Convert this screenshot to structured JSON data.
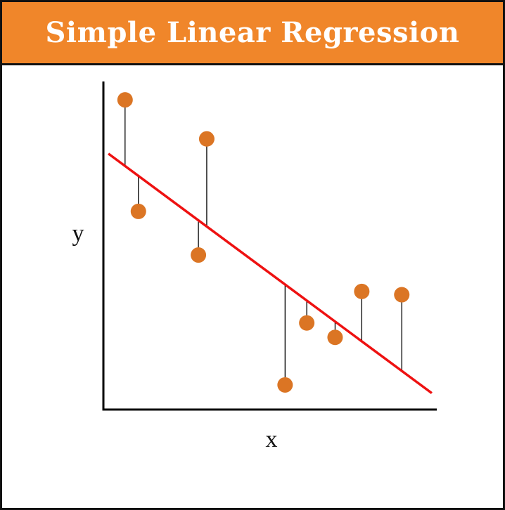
{
  "title": "Simple Linear Regression",
  "colors": {
    "title_background": "#F0862A",
    "title_text": "#FFFFFF",
    "point": "#DB7524",
    "regression_line": "#EE1111",
    "residual_line": "#000000",
    "axis": "#000000"
  },
  "chart_data": {
    "type": "scatter",
    "title": "Simple Linear Regression",
    "xlabel": "x",
    "ylabel": "y",
    "xlim": [
      0,
      10
    ],
    "ylim": [
      0,
      10
    ],
    "grid": false,
    "tick_labels": false,
    "points": [
      {
        "x": 0.65,
        "y": 9.44
      },
      {
        "x": 1.05,
        "y": 6.04
      },
      {
        "x": 2.85,
        "y": 4.71
      },
      {
        "x": 3.1,
        "y": 8.25
      },
      {
        "x": 5.45,
        "y": 0.75
      },
      {
        "x": 6.1,
        "y": 2.64
      },
      {
        "x": 6.95,
        "y": 2.2
      },
      {
        "x": 7.75,
        "y": 3.6
      },
      {
        "x": 8.95,
        "y": 3.5
      }
    ],
    "regression_line": {
      "x": [
        0.15,
        9.85
      ],
      "y": [
        7.8,
        0.5
      ]
    },
    "residuals": true
  }
}
